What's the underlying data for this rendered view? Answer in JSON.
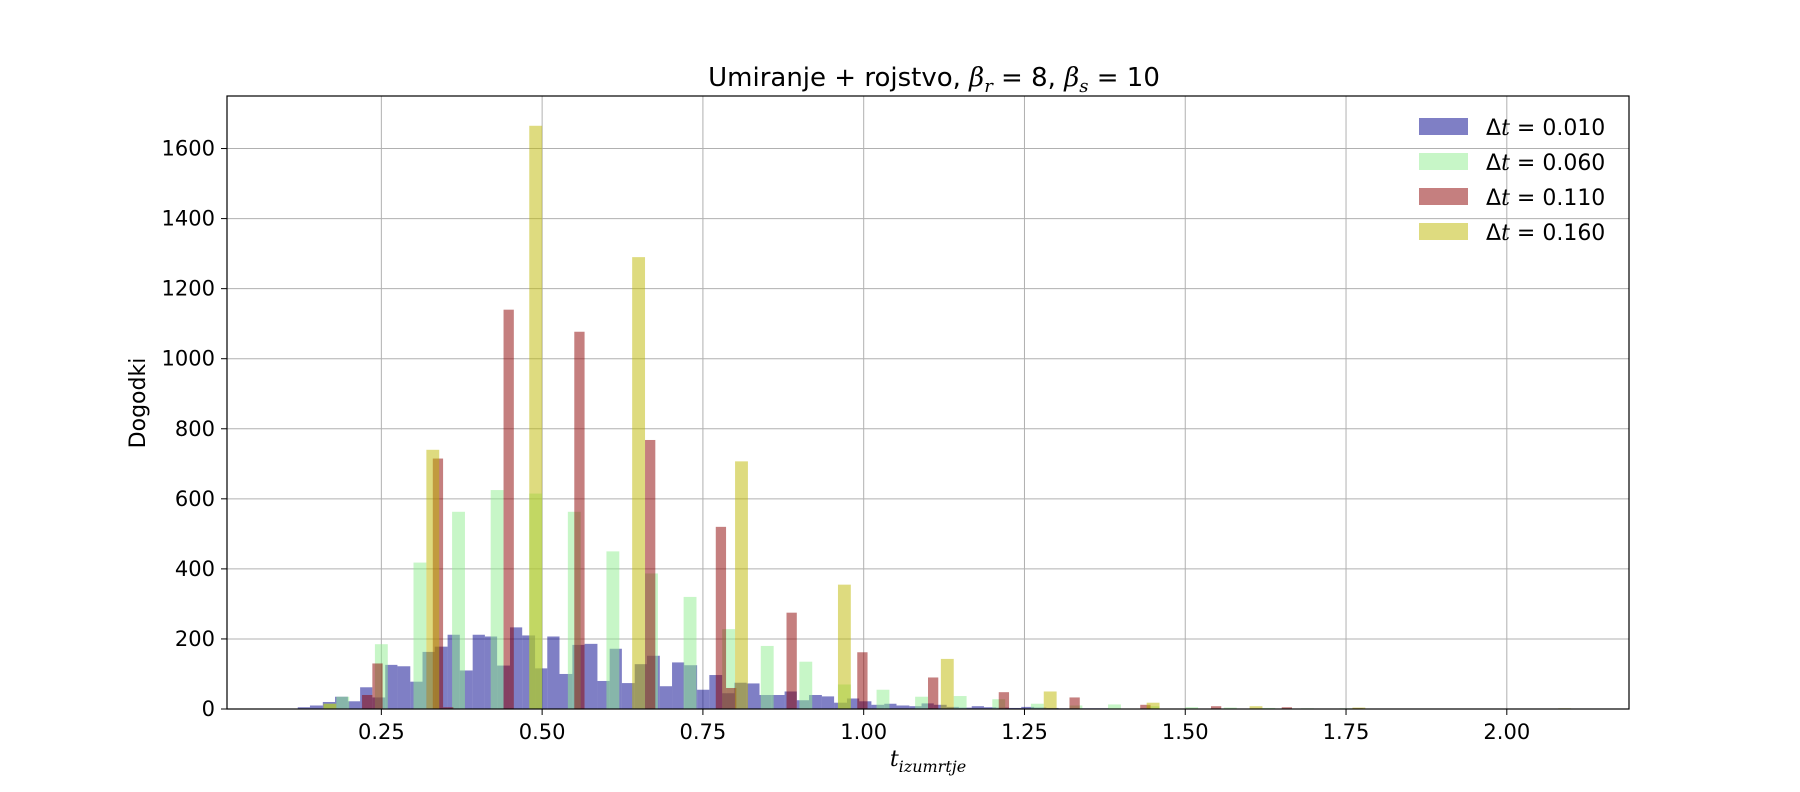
{
  "chart_data": {
    "type": "bar",
    "title": {
      "prefix": "Umiranje + rojstvo, ",
      "beta_r_symbol": "β",
      "beta_r_sub": "r",
      "beta_r_value": " = 8, ",
      "beta_s_symbol": "β",
      "beta_s_sub": "s",
      "beta_s_value": " = 10"
    },
    "xlabel": {
      "main": "t",
      "sub": "izumrtje"
    },
    "ylabel": "Dogodki",
    "xlim": [
      0.01,
      2.19
    ],
    "ylim": [
      0,
      1750
    ],
    "xticks": [
      0.25,
      0.5,
      0.75,
      1.0,
      1.25,
      1.5,
      1.75,
      2.0
    ],
    "xtick_labels": [
      "0.25",
      "0.50",
      "0.75",
      "1.00",
      "1.25",
      "1.50",
      "1.75",
      "2.00"
    ],
    "yticks": [
      0,
      200,
      400,
      600,
      800,
      1000,
      1200,
      1400,
      1600
    ],
    "ytick_labels": [
      "0",
      "200",
      "400",
      "600",
      "800",
      "1000",
      "1200",
      "1400",
      "1600"
    ],
    "grid": true,
    "legend_position": "top-right",
    "opacity": 0.5,
    "series": [
      {
        "name": "Δt = 0.010",
        "legend_symbol": "Δ",
        "legend_var": "t",
        "legend_value": " = 0.010",
        "color": "#00008B",
        "bins": [
          [
            0.12,
            0.139,
            5
          ],
          [
            0.139,
            0.159,
            10
          ],
          [
            0.159,
            0.178,
            20
          ],
          [
            0.178,
            0.198,
            35
          ],
          [
            0.198,
            0.217,
            22
          ],
          [
            0.217,
            0.236,
            62
          ],
          [
            0.236,
            0.256,
            33
          ],
          [
            0.256,
            0.275,
            126
          ],
          [
            0.275,
            0.295,
            122
          ],
          [
            0.295,
            0.314,
            78
          ],
          [
            0.314,
            0.333,
            163
          ],
          [
            0.333,
            0.353,
            178
          ],
          [
            0.353,
            0.372,
            212
          ],
          [
            0.372,
            0.392,
            110
          ],
          [
            0.392,
            0.411,
            212
          ],
          [
            0.411,
            0.43,
            207
          ],
          [
            0.43,
            0.45,
            124
          ],
          [
            0.45,
            0.469,
            233
          ],
          [
            0.469,
            0.489,
            210
          ],
          [
            0.489,
            0.508,
            116
          ],
          [
            0.508,
            0.527,
            207
          ],
          [
            0.527,
            0.547,
            100
          ],
          [
            0.547,
            0.566,
            183
          ],
          [
            0.566,
            0.586,
            186
          ],
          [
            0.586,
            0.605,
            80
          ],
          [
            0.605,
            0.624,
            172
          ],
          [
            0.624,
            0.644,
            74
          ],
          [
            0.644,
            0.663,
            128
          ],
          [
            0.663,
            0.683,
            152
          ],
          [
            0.683,
            0.702,
            65
          ],
          [
            0.702,
            0.721,
            133
          ],
          [
            0.721,
            0.741,
            125
          ],
          [
            0.741,
            0.76,
            55
          ],
          [
            0.76,
            0.78,
            97
          ],
          [
            0.78,
            0.799,
            45
          ],
          [
            0.799,
            0.818,
            75
          ],
          [
            0.818,
            0.838,
            73
          ],
          [
            0.838,
            0.857,
            40
          ],
          [
            0.857,
            0.877,
            40
          ],
          [
            0.877,
            0.896,
            50
          ],
          [
            0.896,
            0.915,
            25
          ],
          [
            0.915,
            0.935,
            40
          ],
          [
            0.935,
            0.954,
            36
          ],
          [
            0.954,
            0.974,
            18
          ],
          [
            0.974,
            0.993,
            30
          ],
          [
            0.993,
            1.012,
            22
          ],
          [
            1.012,
            1.032,
            12
          ],
          [
            1.032,
            1.051,
            15
          ],
          [
            1.051,
            1.071,
            10
          ],
          [
            1.071,
            1.09,
            8
          ],
          [
            1.09,
            1.109,
            16
          ],
          [
            1.109,
            1.129,
            12
          ],
          [
            1.129,
            1.148,
            6
          ],
          [
            1.148,
            1.168,
            4
          ],
          [
            1.168,
            1.187,
            8
          ],
          [
            1.187,
            1.206,
            5
          ],
          [
            1.206,
            1.226,
            4
          ],
          [
            1.226,
            1.245,
            3
          ],
          [
            1.245,
            1.265,
            6
          ],
          [
            1.265,
            1.284,
            4
          ],
          [
            1.284,
            1.303,
            3
          ],
          [
            1.303,
            1.323,
            2
          ],
          [
            1.323,
            1.342,
            2
          ],
          [
            1.342,
            1.362,
            2
          ],
          [
            1.362,
            1.381,
            2
          ],
          [
            1.381,
            1.4,
            1
          ],
          [
            1.4,
            1.42,
            1
          ],
          [
            1.42,
            1.439,
            1
          ],
          [
            1.46,
            1.479,
            1
          ],
          [
            1.5,
            1.519,
            1
          ]
        ]
      },
      {
        "name": "Δt = 0.060",
        "legend_symbol": "Δ",
        "legend_var": "t",
        "legend_value": " = 0.060",
        "color": "#90EE90",
        "bins": [
          [
            0.16,
            0.18,
            15
          ],
          [
            0.18,
            0.2,
            35
          ],
          [
            0.24,
            0.26,
            185
          ],
          [
            0.3,
            0.32,
            418
          ],
          [
            0.36,
            0.38,
            563
          ],
          [
            0.42,
            0.44,
            625
          ],
          [
            0.48,
            0.5,
            615
          ],
          [
            0.54,
            0.56,
            563
          ],
          [
            0.6,
            0.62,
            450
          ],
          [
            0.66,
            0.68,
            387
          ],
          [
            0.72,
            0.74,
            320
          ],
          [
            0.78,
            0.8,
            228
          ],
          [
            0.84,
            0.86,
            180
          ],
          [
            0.9,
            0.92,
            135
          ],
          [
            0.96,
            0.98,
            70
          ],
          [
            1.02,
            1.04,
            55
          ],
          [
            1.08,
            1.1,
            35
          ],
          [
            1.14,
            1.16,
            37
          ],
          [
            1.2,
            1.22,
            28
          ],
          [
            1.26,
            1.28,
            15
          ],
          [
            1.32,
            1.34,
            10
          ],
          [
            1.38,
            1.4,
            13
          ],
          [
            1.44,
            1.46,
            8
          ],
          [
            1.5,
            1.52,
            5
          ],
          [
            1.56,
            1.58,
            4
          ],
          [
            1.62,
            1.64,
            3
          ],
          [
            1.68,
            1.7,
            2
          ],
          [
            1.74,
            1.76,
            2
          ],
          [
            1.8,
            1.82,
            1
          ]
        ]
      },
      {
        "name": "Δt = 0.110",
        "legend_symbol": "Δ",
        "legend_var": "t",
        "legend_value": " = 0.110",
        "color": "#8B0000",
        "bins": [
          [
            0.22,
            0.236,
            40
          ],
          [
            0.236,
            0.252,
            130
          ],
          [
            0.33,
            0.346,
            715
          ],
          [
            0.346,
            0.362,
            5
          ],
          [
            0.44,
            0.456,
            1140
          ],
          [
            0.55,
            0.566,
            1077
          ],
          [
            0.66,
            0.676,
            768
          ],
          [
            0.77,
            0.786,
            520
          ],
          [
            0.786,
            0.802,
            60
          ],
          [
            0.88,
            0.896,
            275
          ],
          [
            0.99,
            1.006,
            162
          ],
          [
            1.1,
            1.116,
            90
          ],
          [
            1.21,
            1.226,
            48
          ],
          [
            1.32,
            1.336,
            33
          ],
          [
            1.43,
            1.446,
            12
          ],
          [
            1.54,
            1.556,
            8
          ],
          [
            1.65,
            1.666,
            5
          ],
          [
            1.76,
            1.776,
            2
          ]
        ]
      },
      {
        "name": "Δt = 0.160",
        "legend_symbol": "Δ",
        "legend_var": "t",
        "legend_value": " = 0.160",
        "color": "#BDB800",
        "bins": [
          [
            0.16,
            0.18,
            15
          ],
          [
            0.32,
            0.34,
            740
          ],
          [
            0.48,
            0.5,
            1665
          ],
          [
            0.64,
            0.66,
            1290
          ],
          [
            0.8,
            0.82,
            707
          ],
          [
            0.96,
            0.98,
            355
          ],
          [
            1.12,
            1.14,
            143
          ],
          [
            1.28,
            1.3,
            50
          ],
          [
            1.44,
            1.46,
            18
          ],
          [
            1.6,
            1.62,
            8
          ],
          [
            1.76,
            1.78,
            4
          ],
          [
            2.08,
            2.1,
            2
          ]
        ]
      }
    ]
  }
}
